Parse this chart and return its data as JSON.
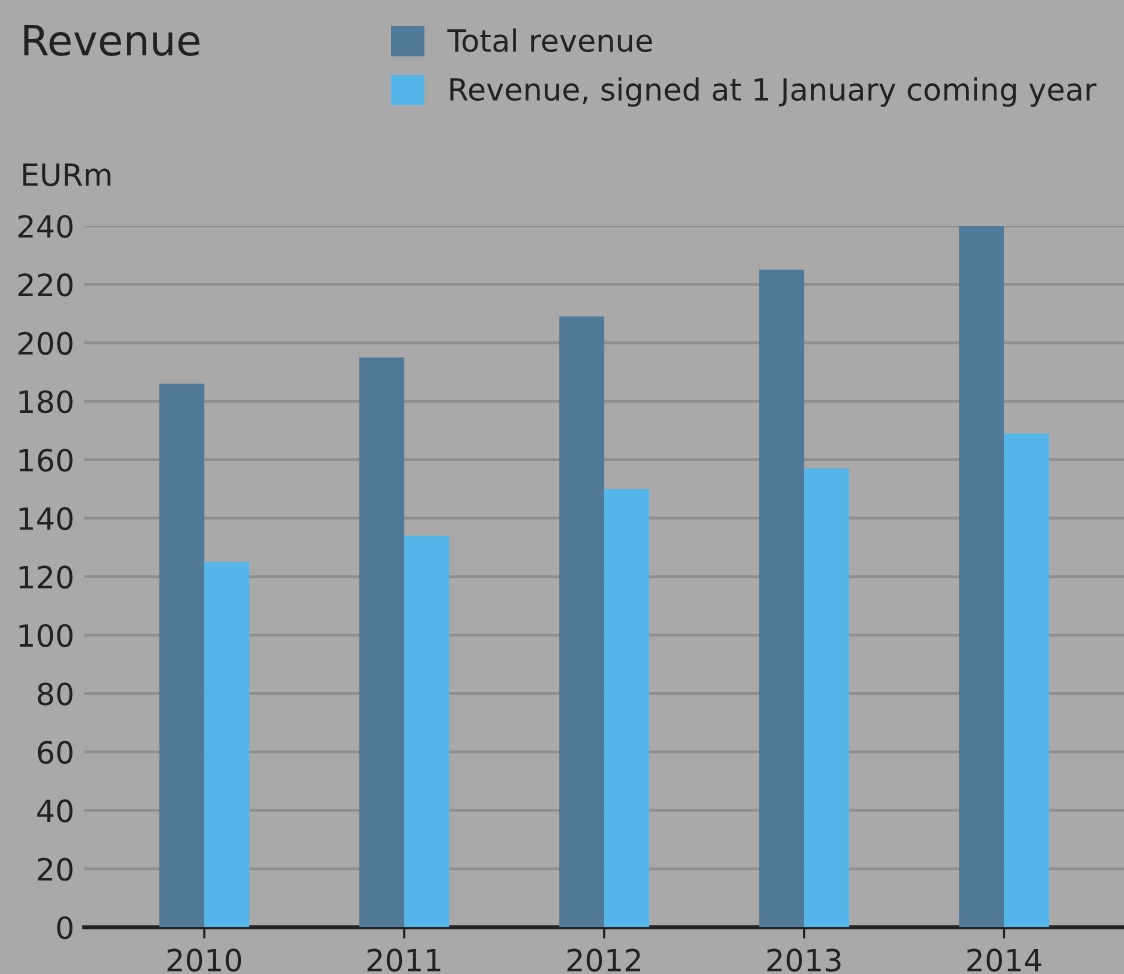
{
  "chart_data": {
    "type": "bar",
    "title": "Revenue",
    "ylabel": "EURm",
    "categories": [
      "2010",
      "2011",
      "2012",
      "2013",
      "2014"
    ],
    "series": [
      {
        "name": "Total revenue",
        "color": "#517a99",
        "values": [
          186,
          195,
          209,
          225,
          240
        ]
      },
      {
        "name": "Revenue, signed at 1 January coming year",
        "color": "#55b5e8",
        "values": [
          125,
          134,
          150,
          157,
          169
        ]
      }
    ],
    "ylim": [
      0,
      240
    ],
    "yticks": [
      0,
      20,
      40,
      60,
      80,
      100,
      120,
      140,
      160,
      180,
      200,
      220,
      240
    ],
    "grid": "y",
    "legend": "top right"
  }
}
